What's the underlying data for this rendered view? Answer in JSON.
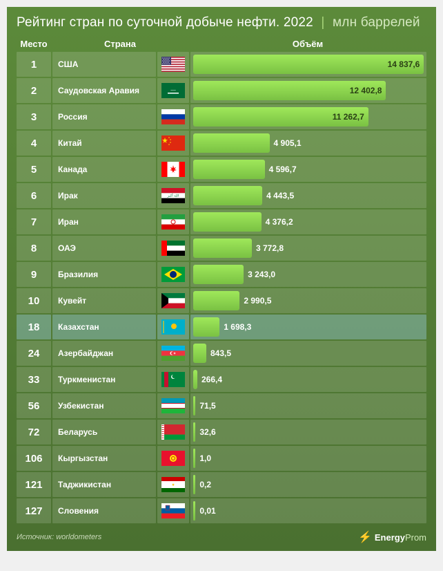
{
  "title_main": "Рейтинг стран по суточной добыче нефти. 2022",
  "title_unit": "млн баррелей",
  "headers": {
    "rank": "Место",
    "country": "Страна",
    "volume": "Объём"
  },
  "max_value": 15000,
  "bar_color_top": "#9fe85a",
  "bar_color_bottom": "#7ac143",
  "rows": [
    {
      "rank": "1",
      "country": "США",
      "flag": "us",
      "value": 14837.6,
      "label": "14 837,6",
      "inside": true
    },
    {
      "rank": "2",
      "country": "Саудовская Аравия",
      "flag": "sa",
      "value": 12402.8,
      "label": "12 402,8",
      "inside": true
    },
    {
      "rank": "3",
      "country": "Россия",
      "flag": "ru",
      "value": 11262.7,
      "label": "11 262,7",
      "inside": true
    },
    {
      "rank": "4",
      "country": "Китай",
      "flag": "cn",
      "value": 4905.1,
      "label": "4 905,1"
    },
    {
      "rank": "5",
      "country": "Канада",
      "flag": "ca",
      "value": 4596.7,
      "label": "4 596,7"
    },
    {
      "rank": "6",
      "country": "Ирак",
      "flag": "iq",
      "value": 4443.5,
      "label": "4 443,5"
    },
    {
      "rank": "7",
      "country": "Иран",
      "flag": "ir",
      "value": 4376.2,
      "label": "4 376,2"
    },
    {
      "rank": "8",
      "country": "ОАЭ",
      "flag": "ae",
      "value": 3772.8,
      "label": "3 772,8"
    },
    {
      "rank": "9",
      "country": "Бразилия",
      "flag": "br",
      "value": 3243.0,
      "label": "3 243,0"
    },
    {
      "rank": "10",
      "country": "Кувейт",
      "flag": "kw",
      "value": 2990.5,
      "label": "2 990,5"
    },
    {
      "rank": "18",
      "country": "Казахстан",
      "flag": "kz",
      "value": 1698.3,
      "label": "1 698,3",
      "highlight": true
    },
    {
      "rank": "24",
      "country": "Азербайджан",
      "flag": "az",
      "value": 843.5,
      "label": "843,5"
    },
    {
      "rank": "33",
      "country": "Туркменистан",
      "flag": "tm",
      "value": 266.4,
      "label": "266,4"
    },
    {
      "rank": "56",
      "country": "Узбекистан",
      "flag": "uz",
      "value": 71.5,
      "label": "71,5"
    },
    {
      "rank": "72",
      "country": "Беларусь",
      "flag": "by",
      "value": 32.6,
      "label": "32,6"
    },
    {
      "rank": "106",
      "country": "Кыргызстан",
      "flag": "kg",
      "value": 1.0,
      "label": "1,0"
    },
    {
      "rank": "121",
      "country": "Таджикистан",
      "flag": "tj",
      "value": 0.2,
      "label": "0,2"
    },
    {
      "rank": "127",
      "country": "Словения",
      "flag": "si",
      "value": 0.01,
      "label": "0,01"
    }
  ],
  "source_label": "Источник: worldometers",
  "logo_energy": "Energy",
  "logo_prom": "Prom",
  "flags": {
    "us": "<rect width='34' height='22' fill='#b22234'/><g fill='#fff'><rect y='1.7' width='34' height='1.7'/><rect y='5.1' width='34' height='1.7'/><rect y='8.5' width='34' height='1.7'/><rect y='11.9' width='34' height='1.7'/><rect y='15.3' width='34' height='1.7'/><rect y='18.7' width='34' height='1.7'/></g><rect width='14' height='11.9' fill='#3c3b6e'/><g fill='#fff'><circle cx='2' cy='2' r='.6'/><circle cx='5' cy='2' r='.6'/><circle cx='8' cy='2' r='.6'/><circle cx='11' cy='2' r='.6'/><circle cx='3.5' cy='4' r='.6'/><circle cx='6.5' cy='4' r='.6'/><circle cx='9.5' cy='4' r='.6'/><circle cx='2' cy='6' r='.6'/><circle cx='5' cy='6' r='.6'/><circle cx='8' cy='6' r='.6'/><circle cx='11' cy='6' r='.6'/><circle cx='3.5' cy='8' r='.6'/><circle cx='6.5' cy='8' r='.6'/><circle cx='9.5' cy='8' r='.6'/><circle cx='2' cy='10' r='.6'/><circle cx='5' cy='10' r='.6'/><circle cx='8' cy='10' r='.6'/><circle cx='11' cy='10' r='.6'/></g>",
    "sa": "<rect width='34' height='22' fill='#006c35'/><text x='17' y='11' font-size='5' fill='#fff' text-anchor='middle'>ـــــ</text><rect x='9' y='14' width='16' height='1.5' fill='#fff'/>",
    "ru": "<rect width='34' height='7.33' fill='#fff'/><rect y='7.33' width='34' height='7.33' fill='#0039a6'/><rect y='14.66' width='34' height='7.34' fill='#d52b1e'/>",
    "cn": "<rect width='34' height='22' fill='#de2910'/><polygon points='5,3 6,6 9,6 6.5,8 7.5,11 5,9 2.5,11 3.5,8 1,6 4,6' fill='#ffde00'/><circle cx='11' cy='3' r='.8' fill='#ffde00'/><circle cx='13' cy='6' r='.8' fill='#ffde00'/><circle cx='13' cy='10' r='.8' fill='#ffde00'/><circle cx='11' cy='13' r='.8' fill='#ffde00'/>",
    "ca": "<rect width='34' height='22' fill='#fff'/><rect width='8.5' height='22' fill='#ff0000'/><rect x='25.5' width='8.5' height='22' fill='#ff0000'/><polygon points='17,5 18,9 21,8 19,11 22,12 18,13 18.5,16 17,14 15.5,16 16,13 12,12 15,11 13,8 16,9' fill='#ff0000'/>",
    "iq": "<rect width='34' height='7.33' fill='#ce1126'/><rect y='7.33' width='34' height='7.33' fill='#fff'/><rect y='14.66' width='34' height='7.34' fill='#000'/><text x='17' y='12.5' font-size='5' fill='#007a3d' text-anchor='middle'>الله أكبر</text>",
    "ir": "<rect width='34' height='7.33' fill='#239f40'/><rect y='7.33' width='34' height='7.33' fill='#fff'/><rect y='14.66' width='34' height='7.34' fill='#da0000'/><circle cx='17' cy='11' r='3' fill='none' stroke='#da0000' stroke-width='1'/>",
    "ae": "<rect width='8' height='22' fill='#ff0000'/><rect x='8' width='26' height='7.33' fill='#00732f'/><rect x='8' y='7.33' width='26' height='7.33' fill='#fff'/><rect x='8' y='14.66' width='26' height='7.34' fill='#000'/>",
    "br": "<rect width='34' height='22' fill='#009b3a'/><polygon points='17,3 30,11 17,19 4,11' fill='#fedf00'/><circle cx='17' cy='11' r='5' fill='#002776'/>",
    "kw": "<rect width='34' height='7.33' fill='#007a3d'/><rect y='7.33' width='34' height='7.33' fill='#fff'/><rect y='14.66' width='34' height='7.34' fill='#ce1126'/><polygon points='0,0 10,7.33 10,14.66 0,22' fill='#000'/>",
    "kz": "<rect width='34' height='22' fill='#00afca'/><circle cx='18' cy='10' r='4' fill='#fec50c'/><rect x='2' y='2' width='2' height='18' fill='#fec50c' opacity='.6'/>",
    "az": "<rect width='34' height='7.33' fill='#00b5e2'/><rect y='7.33' width='34' height='7.33' fill='#ef3340'/><rect y='14.66' width='34' height='7.34' fill='#509e2f'/><circle cx='15' cy='11' r='2.5' fill='#fff'/><circle cx='16' cy='11' r='2' fill='#ef3340'/><polygon points='19,9 19.5,10.5 21,11 19.5,11.5 19,13 18.5,11.5 17,11 18.5,10.5' fill='#fff'/>",
    "tm": "<rect width='34' height='22' fill='#00843d'/><rect x='4' width='6' height='22' fill='#c8102e'/><circle cx='17' cy='7' r='3' fill='#fff'/><circle cx='18' cy='6.5' r='2.7' fill='#00843d'/>",
    "uz": "<rect width='34' height='7' fill='#0099b5'/><rect y='7' width='34' height='1' fill='#ce1126'/><rect y='8' width='34' height='6' fill='#fff'/><rect y='14' width='34' height='1' fill='#ce1126'/><rect y='15' width='34' height='7' fill='#1eb53a'/>",
    "by": "<rect width='34' height='14.66' fill='#d22730'/><rect y='14.66' width='34' height='7.34' fill='#009739'/><rect width='4' height='22' fill='#fff'/><g fill='#d22730'><rect x='.5' y='1' width='3' height='1'/><rect x='.5' y='4' width='3' height='1'/><rect x='.5' y='7' width='3' height='1'/><rect x='.5' y='10' width='3' height='1'/><rect x='.5' y='13' width='3' height='1'/><rect x='.5' y='16' width='3' height='1'/><rect x='.5' y='19' width='3' height='1'/></g>",
    "kg": "<rect width='34' height='22' fill='#e8112d'/><circle cx='17' cy='11' r='5' fill='#ffef00'/><circle cx='17' cy='11' r='3' fill='#e8112d'/><circle cx='17' cy='11' r='2' fill='#ffef00'/>",
    "tj": "<rect width='34' height='6' fill='#cc0000'/><rect y='6' width='34' height='10' fill='#fff'/><rect y='16' width='34' height='6' fill='#006600'/><polygon points='17,9 17.5,10.5 19,10.5 17.8,11.5 18.3,13 17,12 15.7,13 16.2,11.5 15,10.5 16.5,10.5' fill='#f8c300'/>",
    "si": "<rect width='34' height='7.33' fill='#fff'/><rect y='7.33' width='34' height='7.33' fill='#005da4'/><rect y='14.66' width='34' height='7.34' fill='#ed1c24'/><rect x='6' y='3' width='6' height='7' fill='#005da4' stroke='#ed1c24' stroke-width='.5'/>"
  }
}
